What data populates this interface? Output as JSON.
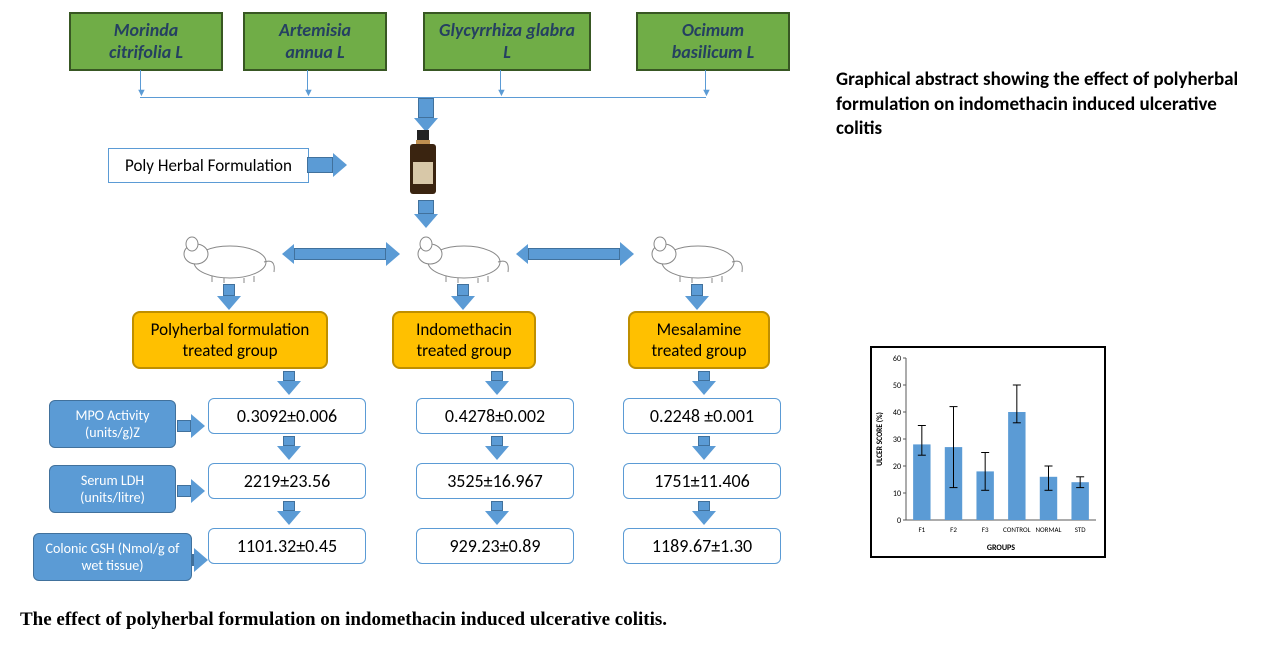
{
  "herbs": [
    "Morinda citrifolia L",
    "Artemisia annua L",
    "Glycyrrhiza glabra L",
    "Ocimum basilicum L"
  ],
  "poly_label": "Poly Herbal Formulation",
  "groups": [
    "Polyherbal formulation treated group",
    "Indomethacin treated group",
    "Mesalamine treated group"
  ],
  "labels": [
    "MPO Activity (units/g)Z",
    "Serum LDH (units/litre)",
    "Colonic GSH (Nmol/g of wet tissue)"
  ],
  "data": {
    "polyherbal": [
      "0.3092±0.006",
      "2219±23.56",
      "1101.32±0.45"
    ],
    "indomethacin": [
      "0.4278±0.002",
      "3525±16.967",
      "929.23±0.89"
    ],
    "mesalamine": [
      "0.2248 ±0.001",
      "1751±11.406",
      "1189.67±1.30"
    ]
  },
  "desc": "Graphical abstract showing the effect of polyherbal formulation on indomethacin induced ulcerative colitis",
  "caption": "The effect of polyherbal formulation on indomethacin induced ulcerative colitis.",
  "chart": {
    "ylabel": "ULCER SCORE  (%)",
    "xlabel": "GROUPS",
    "categories": [
      "F1",
      "F2",
      "F3",
      "CONTROL",
      "NORMAL",
      "STD"
    ],
    "values": [
      28,
      27,
      18,
      40,
      16,
      14
    ],
    "err_low": [
      4,
      15,
      7,
      4,
      5,
      2
    ],
    "err_high": [
      7,
      15,
      7,
      10,
      4,
      2
    ],
    "ylim": [
      0,
      60
    ],
    "ytick_step": 10,
    "bar_color": "#5b9bd5",
    "bg": "#fff",
    "axis_color": "#595959"
  },
  "colors": {
    "herb_bg": "#70ad47",
    "herb_border": "#385723",
    "group_bg": "#ffc000",
    "group_border": "#bf8f00",
    "blue": "#5b9bd5",
    "blue_dark": "#41719c"
  }
}
